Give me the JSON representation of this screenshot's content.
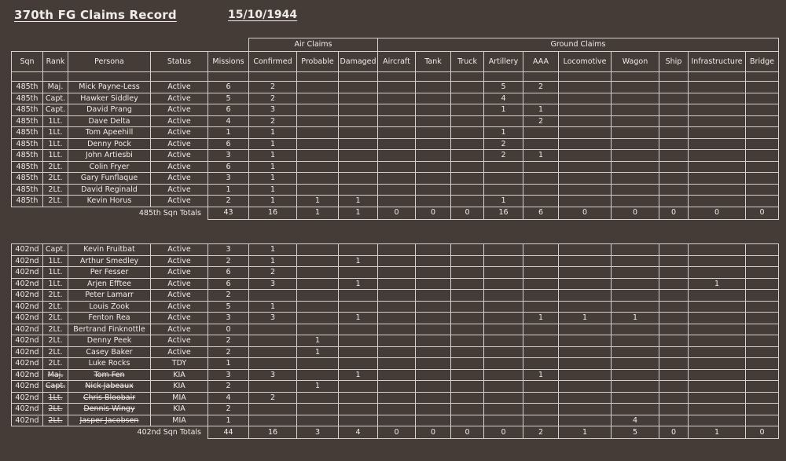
{
  "title": "370th FG Claims Record",
  "date": "15/10/1944",
  "colors": {
    "background": "#453c37",
    "ink": "#f0ece7",
    "border": "#d4d0cb"
  },
  "table": {
    "groups": [
      {
        "label": "Air Claims",
        "span": 3
      },
      {
        "label": "Ground Claims",
        "span": 10
      }
    ],
    "columns": [
      "Sqn",
      "Rank",
      "Persona",
      "Status",
      "Missions",
      "Confirmed",
      "Probable",
      "Damaged",
      "Aircraft",
      "Tank",
      "Truck",
      "Artillery",
      "AAA",
      "Locomotive",
      "Wagon",
      "Ship",
      "Infrastructure",
      "Bridge"
    ],
    "claim_keys": [
      "confirmed",
      "probable",
      "damaged",
      "aircraft",
      "tank",
      "truck",
      "artillery",
      "aaa",
      "locomotive",
      "wagon",
      "ship",
      "infrastructure",
      "bridge"
    ],
    "sections": [
      {
        "rows": [
          {
            "sqn": "485th",
            "rank": "Maj.",
            "persona": "Mick Payne-Less",
            "status": "Active",
            "missions": "6",
            "struck": false,
            "claims": [
              "2",
              "",
              "",
              "",
              "",
              "",
              "5",
              "2",
              "",
              "",
              "",
              "",
              ""
            ]
          },
          {
            "sqn": "485th",
            "rank": "Capt.",
            "persona": "Hawker Siddley",
            "status": "Active",
            "missions": "5",
            "struck": false,
            "claims": [
              "2",
              "",
              "",
              "",
              "",
              "",
              "4",
              "",
              "",
              "",
              "",
              "",
              ""
            ]
          },
          {
            "sqn": "485th",
            "rank": "Capt.",
            "persona": "David Prang",
            "status": "Active",
            "missions": "6",
            "struck": false,
            "claims": [
              "3",
              "",
              "",
              "",
              "",
              "",
              "1",
              "1",
              "",
              "",
              "",
              "",
              ""
            ]
          },
          {
            "sqn": "485th",
            "rank": "1Lt.",
            "persona": "Dave Delta",
            "status": "Active",
            "missions": "4",
            "struck": false,
            "claims": [
              "2",
              "",
              "",
              "",
              "",
              "",
              "",
              "2",
              "",
              "",
              "",
              "",
              ""
            ]
          },
          {
            "sqn": "485th",
            "rank": "1Lt.",
            "persona": "Tom Apeehill",
            "status": "Active",
            "missions": "1",
            "struck": false,
            "claims": [
              "1",
              "",
              "",
              "",
              "",
              "",
              "1",
              "",
              "",
              "",
              "",
              "",
              ""
            ]
          },
          {
            "sqn": "485th",
            "rank": "1Lt.",
            "persona": "Denny Pock",
            "status": "Active",
            "missions": "6",
            "struck": false,
            "claims": [
              "1",
              "",
              "",
              "",
              "",
              "",
              "2",
              "",
              "",
              "",
              "",
              "",
              ""
            ]
          },
          {
            "sqn": "485th",
            "rank": "1Lt.",
            "persona": "John Artiesbi",
            "status": "Active",
            "missions": "3",
            "struck": false,
            "claims": [
              "1",
              "",
              "",
              "",
              "",
              "",
              "2",
              "1",
              "",
              "",
              "",
              "",
              ""
            ]
          },
          {
            "sqn": "485th",
            "rank": "2Lt.",
            "persona": "Colin Fryer",
            "status": "Active",
            "missions": "6",
            "struck": false,
            "claims": [
              "1",
              "",
              "",
              "",
              "",
              "",
              "",
              "",
              "",
              "",
              "",
              "",
              ""
            ]
          },
          {
            "sqn": "485th",
            "rank": "2Lt.",
            "persona": "Gary Funflaque",
            "status": "Active",
            "missions": "3",
            "struck": false,
            "claims": [
              "1",
              "",
              "",
              "",
              "",
              "",
              "",
              "",
              "",
              "",
              "",
              "",
              ""
            ]
          },
          {
            "sqn": "485th",
            "rank": "2Lt.",
            "persona": "David Reginald",
            "status": "Active",
            "missions": "1",
            "struck": false,
            "claims": [
              "1",
              "",
              "",
              "",
              "",
              "",
              "",
              "",
              "",
              "",
              "",
              "",
              ""
            ]
          },
          {
            "sqn": "485th",
            "rank": "2Lt.",
            "persona": "Kevin Horus",
            "status": "Active",
            "missions": "2",
            "struck": false,
            "claims": [
              "1",
              "1",
              "1",
              "",
              "",
              "",
              "1",
              "",
              "",
              "",
              "",
              "",
              ""
            ]
          }
        ],
        "totals": {
          "label": "485th Sqn Totals",
          "missions": "43",
          "claims": [
            "16",
            "1",
            "1",
            "0",
            "0",
            "0",
            "16",
            "6",
            "0",
            "0",
            "0",
            "0",
            "0"
          ]
        }
      },
      {
        "rows": [
          {
            "sqn": "402nd",
            "rank": "Capt.",
            "persona": "Kevin Fruitbat",
            "status": "Active",
            "missions": "3",
            "struck": false,
            "claims": [
              "1",
              "",
              "",
              "",
              "",
              "",
              "",
              "",
              "",
              "",
              "",
              "",
              ""
            ]
          },
          {
            "sqn": "402nd",
            "rank": "1Lt.",
            "persona": "Arthur Smedley",
            "status": "Active",
            "missions": "2",
            "struck": false,
            "claims": [
              "1",
              "",
              "1",
              "",
              "",
              "",
              "",
              "",
              "",
              "",
              "",
              "",
              ""
            ]
          },
          {
            "sqn": "402nd",
            "rank": "1Lt.",
            "persona": "Per Fesser",
            "status": "Active",
            "missions": "6",
            "struck": false,
            "claims": [
              "2",
              "",
              "",
              "",
              "",
              "",
              "",
              "",
              "",
              "",
              "",
              "",
              ""
            ]
          },
          {
            "sqn": "402nd",
            "rank": "1Lt.",
            "persona": "Arjen Efftee",
            "status": "Active",
            "missions": "6",
            "struck": false,
            "claims": [
              "3",
              "",
              "1",
              "",
              "",
              "",
              "",
              "",
              "",
              "",
              "",
              "1",
              ""
            ]
          },
          {
            "sqn": "402nd",
            "rank": "2Lt.",
            "persona": "Peter Lamarr",
            "status": "Active",
            "missions": "2",
            "struck": false,
            "claims": [
              "",
              "",
              "",
              "",
              "",
              "",
              "",
              "",
              "",
              "",
              "",
              "",
              ""
            ]
          },
          {
            "sqn": "402nd",
            "rank": "2Lt.",
            "persona": "Louis Zook",
            "status": "Active",
            "missions": "5",
            "struck": false,
            "claims": [
              "1",
              "",
              "",
              "",
              "",
              "",
              "",
              "",
              "",
              "",
              "",
              "",
              ""
            ]
          },
          {
            "sqn": "402nd",
            "rank": "2Lt.",
            "persona": "Fenton Rea",
            "status": "Active",
            "missions": "3",
            "struck": false,
            "claims": [
              "3",
              "",
              "1",
              "",
              "",
              "",
              "",
              "1",
              "1",
              "1",
              "",
              "",
              ""
            ]
          },
          {
            "sqn": "402nd",
            "rank": "2Lt.",
            "persona": "Bertrand Finknottle",
            "status": "Active",
            "missions": "0",
            "struck": false,
            "claims": [
              "",
              "",
              "",
              "",
              "",
              "",
              "",
              "",
              "",
              "",
              "",
              "",
              ""
            ]
          },
          {
            "sqn": "402nd",
            "rank": "2Lt.",
            "persona": "Denny Peek",
            "status": "Active",
            "missions": "2",
            "struck": false,
            "claims": [
              "",
              "1",
              "",
              "",
              "",
              "",
              "",
              "",
              "",
              "",
              "",
              "",
              ""
            ]
          },
          {
            "sqn": "402nd",
            "rank": "2Lt.",
            "persona": "Casey Baker",
            "status": "Active",
            "missions": "2",
            "struck": false,
            "claims": [
              "",
              "1",
              "",
              "",
              "",
              "",
              "",
              "",
              "",
              "",
              "",
              "",
              ""
            ]
          },
          {
            "sqn": "402nd",
            "rank": "2Lt.",
            "persona": "Luke Rocks",
            "status": "TDY",
            "missions": "1",
            "struck": false,
            "claims": [
              "",
              "",
              "",
              "",
              "",
              "",
              "",
              "",
              "",
              "",
              "",
              "",
              ""
            ]
          },
          {
            "sqn": "402nd",
            "rank": "Maj.",
            "persona": "Tom Fen",
            "status": "KIA",
            "missions": "3",
            "struck": true,
            "claims": [
              "3",
              "",
              "1",
              "",
              "",
              "",
              "",
              "1",
              "",
              "",
              "",
              "",
              ""
            ]
          },
          {
            "sqn": "402nd",
            "rank": "Capt.",
            "persona": "Nick Jabeaux",
            "status": "KIA",
            "missions": "2",
            "struck": true,
            "claims": [
              "",
              "1",
              "",
              "",
              "",
              "",
              "",
              "",
              "",
              "",
              "",
              "",
              ""
            ]
          },
          {
            "sqn": "402nd",
            "rank": "1Lt.",
            "persona": "Chris Bloobair",
            "status": "MIA",
            "missions": "4",
            "struck": true,
            "claims": [
              "2",
              "",
              "",
              "",
              "",
              "",
              "",
              "",
              "",
              "",
              "",
              "",
              ""
            ]
          },
          {
            "sqn": "402nd",
            "rank": "2Lt.",
            "persona": "Dennis Wingy",
            "status": "KIA",
            "missions": "2",
            "struck": true,
            "claims": [
              "",
              "",
              "",
              "",
              "",
              "",
              "",
              "",
              "",
              "",
              "",
              "",
              ""
            ]
          },
          {
            "sqn": "402nd",
            "rank": "2Lt.",
            "persona": "Jasper Jacobsen",
            "status": "MIA",
            "missions": "1",
            "struck": true,
            "claims": [
              "",
              "",
              "",
              "",
              "",
              "",
              "",
              "",
              "",
              "4",
              "",
              "",
              ""
            ]
          }
        ],
        "totals": {
          "label": "402nd Sqn Totals",
          "missions": "44",
          "claims": [
            "16",
            "3",
            "4",
            "0",
            "0",
            "0",
            "0",
            "2",
            "1",
            "5",
            "0",
            "1",
            "0"
          ]
        }
      }
    ]
  }
}
